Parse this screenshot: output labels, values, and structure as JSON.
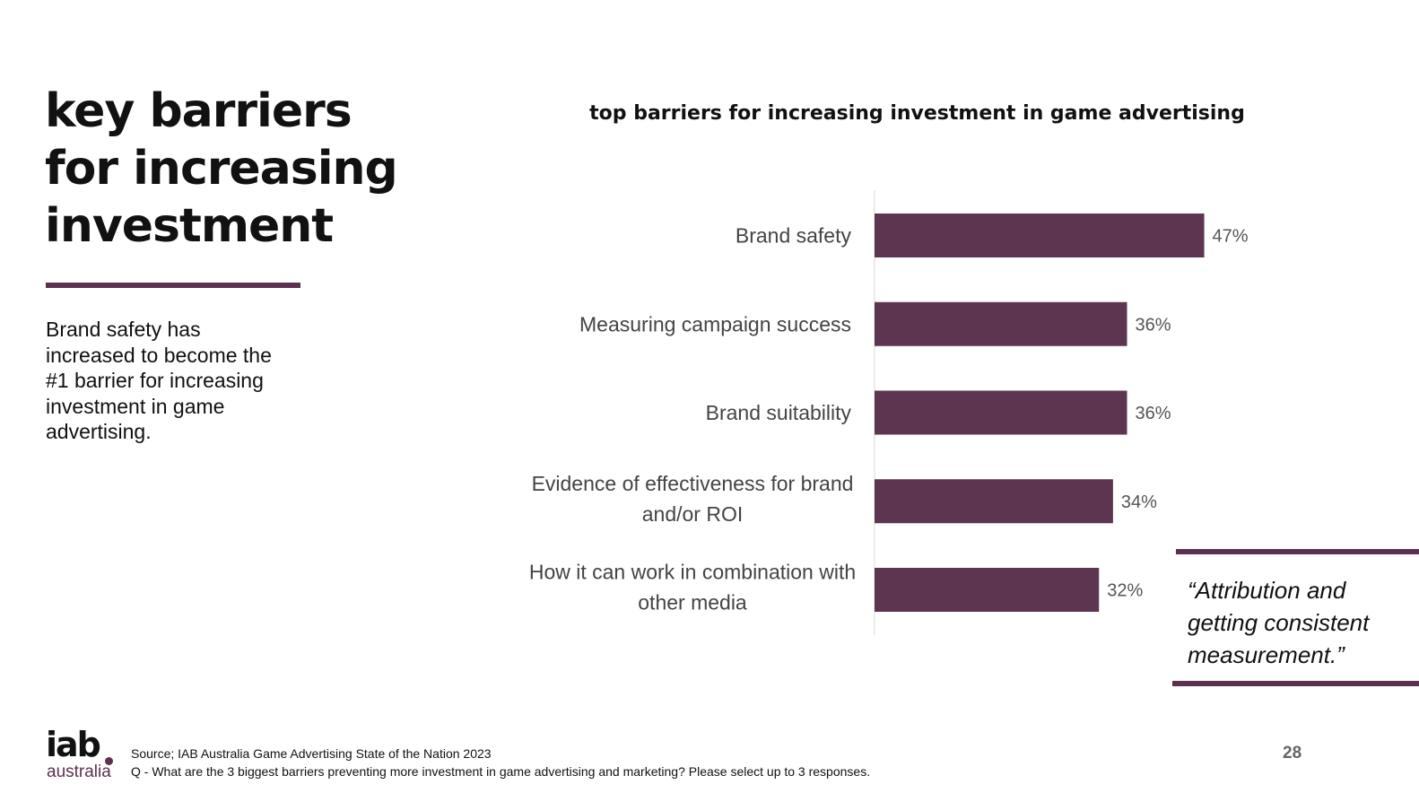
{
  "slide": {
    "heading_lines": [
      "key barriers",
      "for increasing",
      "investment"
    ],
    "body": "Brand safety has increased to become the #1 barrier for increasing investment in game advertising.",
    "quote": "“Attribution and getting consistent measurement.”",
    "source_line1": "Source; IAB Australia Game Advertising State of the Nation 2023",
    "source_line2": "Q - What are the 3 biggest barriers preventing more investment in game advertising and marketing? Please select up to 3 responses.",
    "page_number": "28",
    "logo_main": "iab",
    "logo_sub": "australia",
    "colors": {
      "accent": "#5c3150",
      "bar": "#5e3550",
      "axis": "#d9d9d9"
    }
  },
  "chart_data": {
    "type": "bar",
    "orientation": "horizontal",
    "title": "top barriers for increasing investment in game advertising",
    "categories": [
      [
        "Brand safety"
      ],
      [
        "Measuring campaign success"
      ],
      [
        "Brand suitability"
      ],
      [
        "Evidence of effectiveness for brand",
        "and/or ROI"
      ],
      [
        "How it can work in combination with",
        "other media"
      ]
    ],
    "values": [
      47,
      36,
      36,
      34,
      32
    ],
    "value_labels": [
      "47%",
      "36%",
      "36%",
      "34%",
      "32%"
    ],
    "unit": "%",
    "xlim": [
      0,
      100
    ],
    "grid": false,
    "legend": "none"
  }
}
